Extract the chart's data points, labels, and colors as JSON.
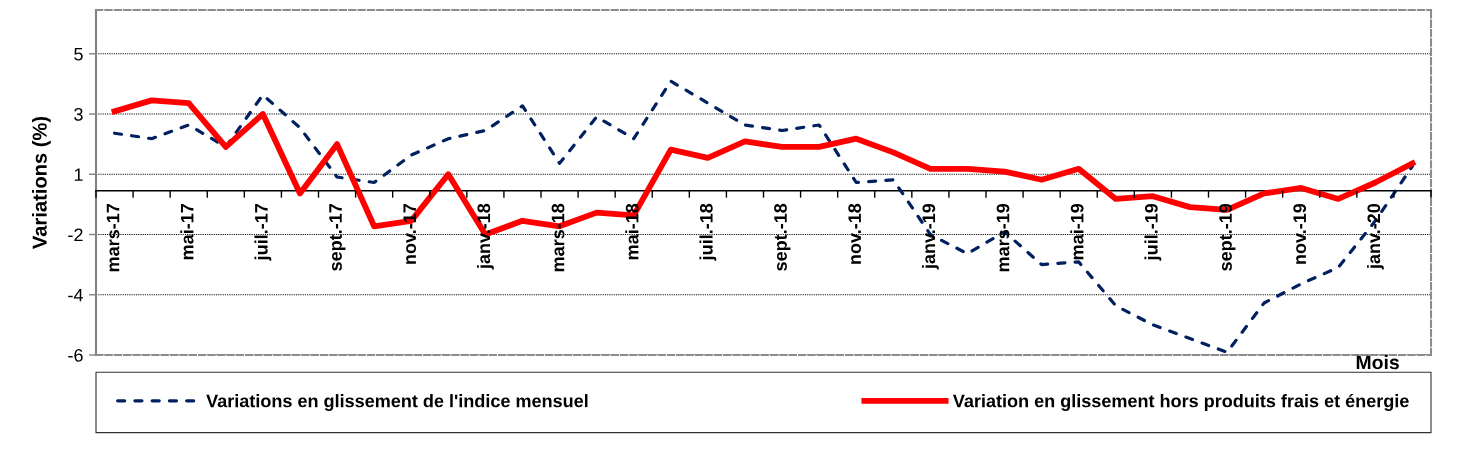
{
  "chart_data": {
    "type": "line",
    "xlabel": "Mois",
    "ylabel": "Variations (%)",
    "categories": [
      "mars-17",
      null,
      "mai-17",
      null,
      "juil.-17",
      null,
      "sept.-17",
      null,
      "nov.-17",
      null,
      "janv.-18",
      null,
      "mars-18",
      null,
      "mai-18",
      null,
      "juil.-18",
      null,
      "sept.-18",
      null,
      "nov.-18",
      null,
      "janv.-19",
      null,
      "mars-19",
      null,
      "mai-19",
      null,
      "juil.-19",
      null,
      "sept.-19",
      null,
      "nov.-19",
      null,
      "janv.-20",
      null
    ],
    "series": [
      {
        "name": "Variations en glissement de l'indice mensuel",
        "color": "#002060",
        "line_style": "dashed",
        "values": [
          2.1,
          1.9,
          2.4,
          1.6,
          3.5,
          2.3,
          0.5,
          0.3,
          1.3,
          1.9,
          2.2,
          3.1,
          1.0,
          2.7,
          1.9,
          4.0,
          3.2,
          2.4,
          2.2,
          2.4,
          0.3,
          0.4,
          -1.6,
          -2.3,
          -1.5,
          -2.7,
          -2.6,
          -4.2,
          -4.9,
          -5.4,
          -5.9,
          -4.1,
          -3.4,
          -2.8,
          -1.1,
          0.9
        ]
      },
      {
        "name": "Variation en glissement hors produits frais et énergie",
        "color": "#ff0000",
        "line_style": "solid",
        "values": [
          2.9,
          3.3,
          3.2,
          1.6,
          2.8,
          -0.1,
          1.7,
          -1.3,
          -1.1,
          0.6,
          -1.6,
          -1.1,
          -1.3,
          -0.8,
          -0.9,
          1.5,
          1.2,
          1.8,
          1.6,
          1.6,
          1.9,
          1.4,
          0.8,
          0.8,
          0.7,
          0.4,
          0.8,
          -0.3,
          -0.2,
          -0.6,
          -0.7,
          -0.1,
          0.1,
          -0.3,
          0.3,
          1.0
        ]
      }
    ],
    "ylim": [
      -6,
      6.6
    ],
    "yticks": [
      -6,
      {
        "value": -3.8,
        "label": "-4"
      },
      {
        "value": -1.6,
        "label": "-2"
      },
      {
        "value": 0.6,
        "label": "1"
      },
      {
        "value": 2.8,
        "label": "3"
      },
      5
    ],
    "grid": "y",
    "legend": "bottom"
  }
}
